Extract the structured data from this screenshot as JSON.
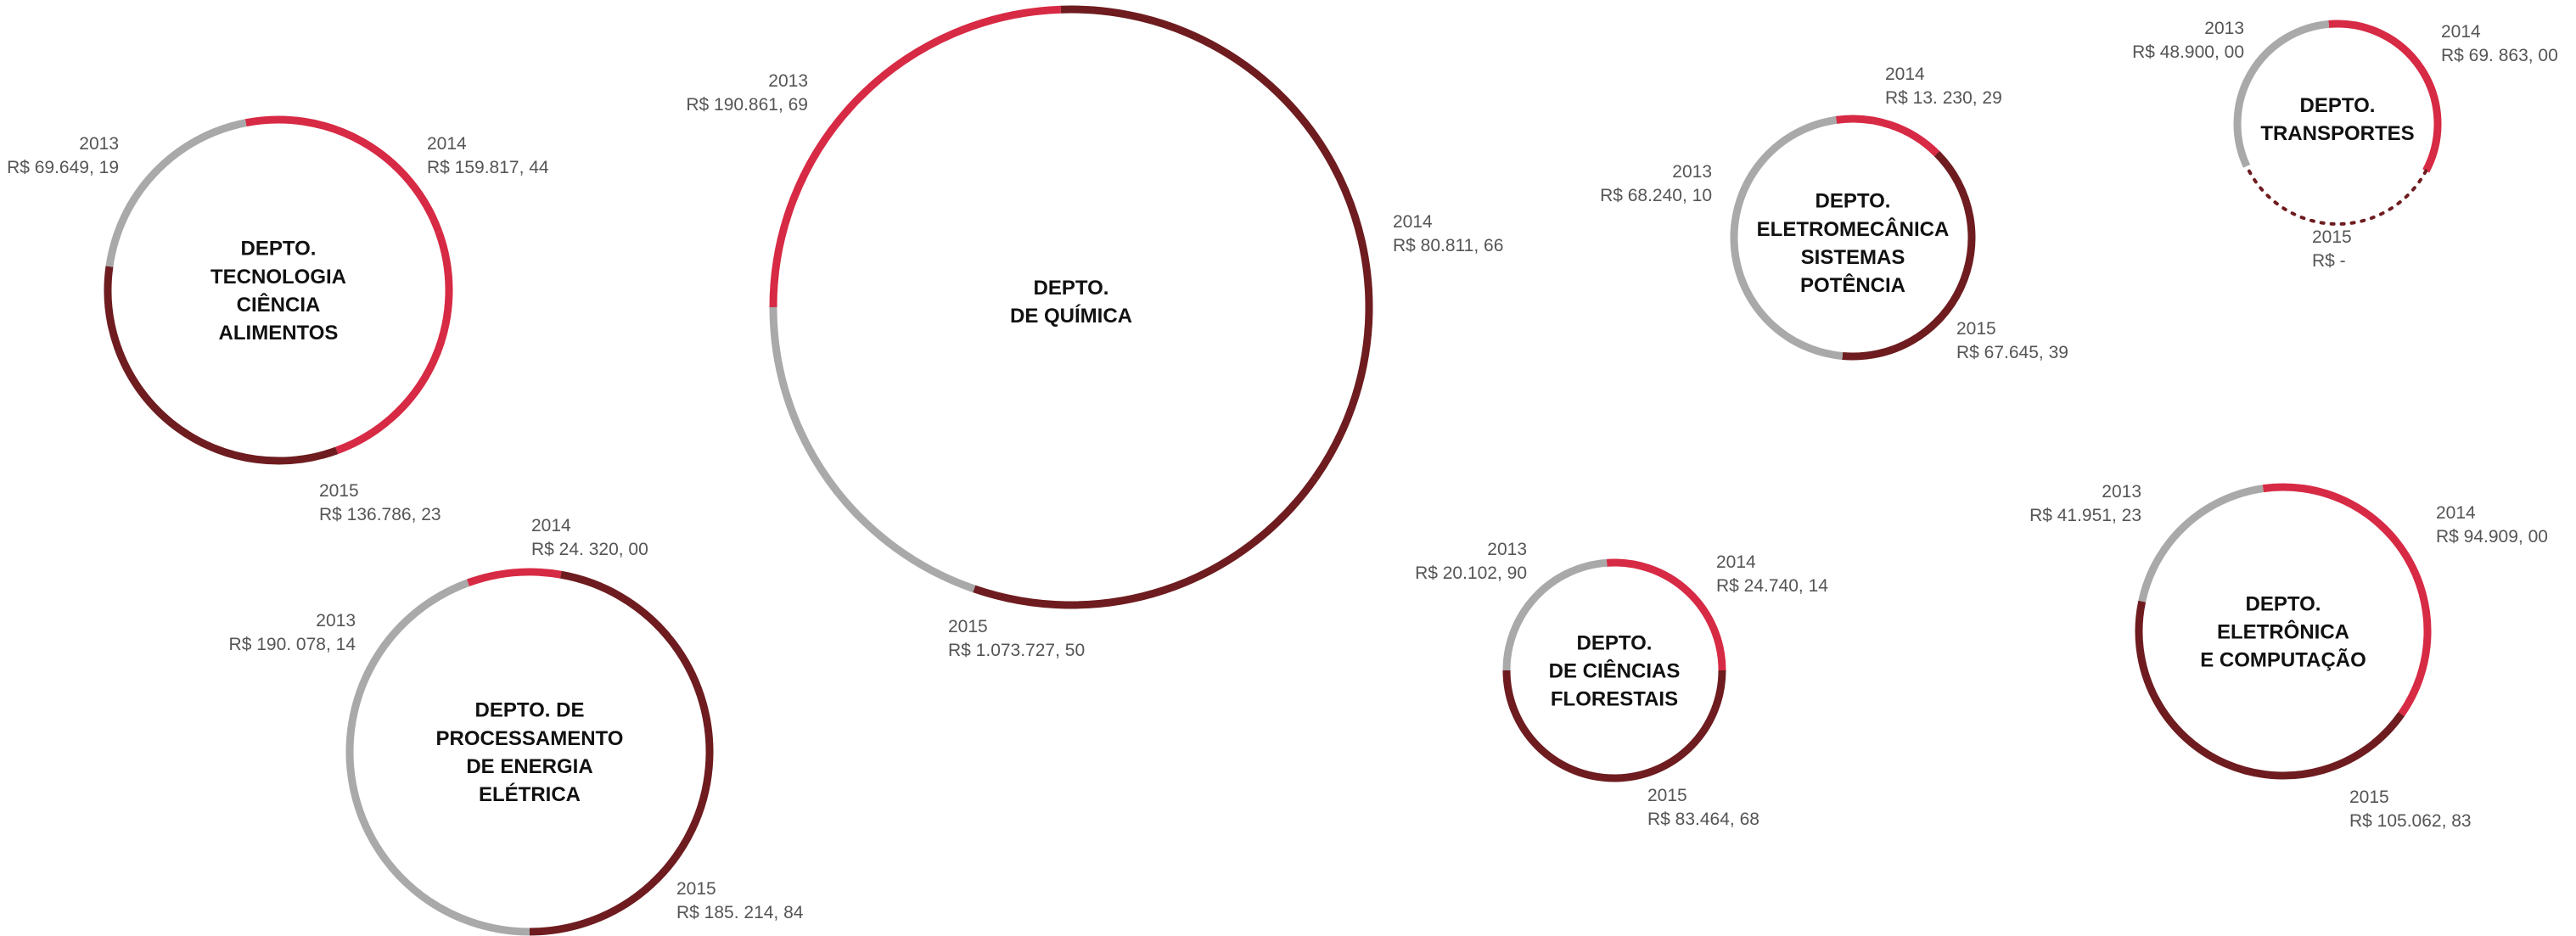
{
  "colors": {
    "y2013": "#a9a9a9",
    "y2014": "#d72a44",
    "y2015": "#6e1c1f",
    "name": "#111111",
    "label": "#555555"
  },
  "chart_data": {
    "type": "circular-arc-bubbles",
    "note_units": "R$",
    "departments": [
      {
        "id": "tecnologia-alimentos",
        "name_lines": [
          "DEPTO.",
          "TECNOLOGIA",
          "CIÊNCIA",
          "ALIMENTOS"
        ],
        "years": [
          {
            "year": "2013",
            "value": 69649.19,
            "label": "R$ 69.649, 19"
          },
          {
            "year": "2014",
            "value": 159817.44,
            "label": "R$ 159.817, 44"
          },
          {
            "year": "2015",
            "value": 136786.23,
            "label": "R$ 136.786, 23"
          }
        ]
      },
      {
        "id": "quimica",
        "name_lines": [
          "DEPTO.",
          "DE QUÍMICA"
        ],
        "years": [
          {
            "year": "2013",
            "value": 190861.69,
            "label": "R$ 190.861, 69"
          },
          {
            "year": "2014",
            "value": 80811.66,
            "label": "R$ 80.811, 66"
          },
          {
            "year": "2015",
            "value": 1073727.5,
            "label": "R$ 1.073.727, 50"
          }
        ]
      },
      {
        "id": "eletromecanica",
        "name_lines": [
          "DEPTO.",
          "ELETROMECÂNICA",
          "SISTEMAS",
          "POTÊNCIA"
        ],
        "years": [
          {
            "year": "2013",
            "value": 68240.1,
            "label": "R$ 68.240, 10"
          },
          {
            "year": "2014",
            "value": 13230.29,
            "label": "R$ 13. 230, 29"
          },
          {
            "year": "2015",
            "value": 67645.39,
            "label": "R$ 67.645, 39"
          }
        ]
      },
      {
        "id": "transportes",
        "name_lines": [
          "DEPTO.",
          "TRANSPORTES"
        ],
        "years": [
          {
            "year": "2013",
            "value": 48900.0,
            "label": "R$ 48.900, 00"
          },
          {
            "year": "2014",
            "value": 69863.0,
            "label": "R$ 69. 863, 00"
          },
          {
            "year": "2015",
            "value": 0,
            "label": "R$ -"
          }
        ]
      },
      {
        "id": "energia-eletrica",
        "name_lines": [
          "DEPTO. DE",
          "PROCESSAMENTO",
          "DE ENERGIA",
          "ELÉTRICA"
        ],
        "years": [
          {
            "year": "2013",
            "value": 190078.14,
            "label": "R$ 190. 078, 14"
          },
          {
            "year": "2014",
            "value": 24320.0,
            "label": "R$ 24. 320, 00"
          },
          {
            "year": "2015",
            "value": 185214.84,
            "label": "R$ 185. 214, 84"
          }
        ]
      },
      {
        "id": "ciencias-florestais",
        "name_lines": [
          "DEPTO.",
          "DE CIÊNCIAS",
          "FLORESTAIS"
        ],
        "years": [
          {
            "year": "2013",
            "value": 20102.9,
            "label": "R$ 20.102, 90"
          },
          {
            "year": "2014",
            "value": 24740.14,
            "label": "R$ 24.740, 14"
          },
          {
            "year": "2015",
            "value": 83464.68,
            "label": "R$ 83.464, 68"
          }
        ]
      },
      {
        "id": "eletronica-computacao",
        "name_lines": [
          "DEPTO.",
          "ELETRÔNICA",
          "E COMPUTAÇÃO"
        ],
        "years": [
          {
            "year": "2013",
            "value": 41951.23,
            "label": "R$ 41.951, 23"
          },
          {
            "year": "2014",
            "value": 94909.0,
            "label": "R$ 94.909, 00"
          },
          {
            "year": "2015",
            "value": 105062.83,
            "label": "R$ 105.062, 83"
          }
        ]
      }
    ]
  }
}
